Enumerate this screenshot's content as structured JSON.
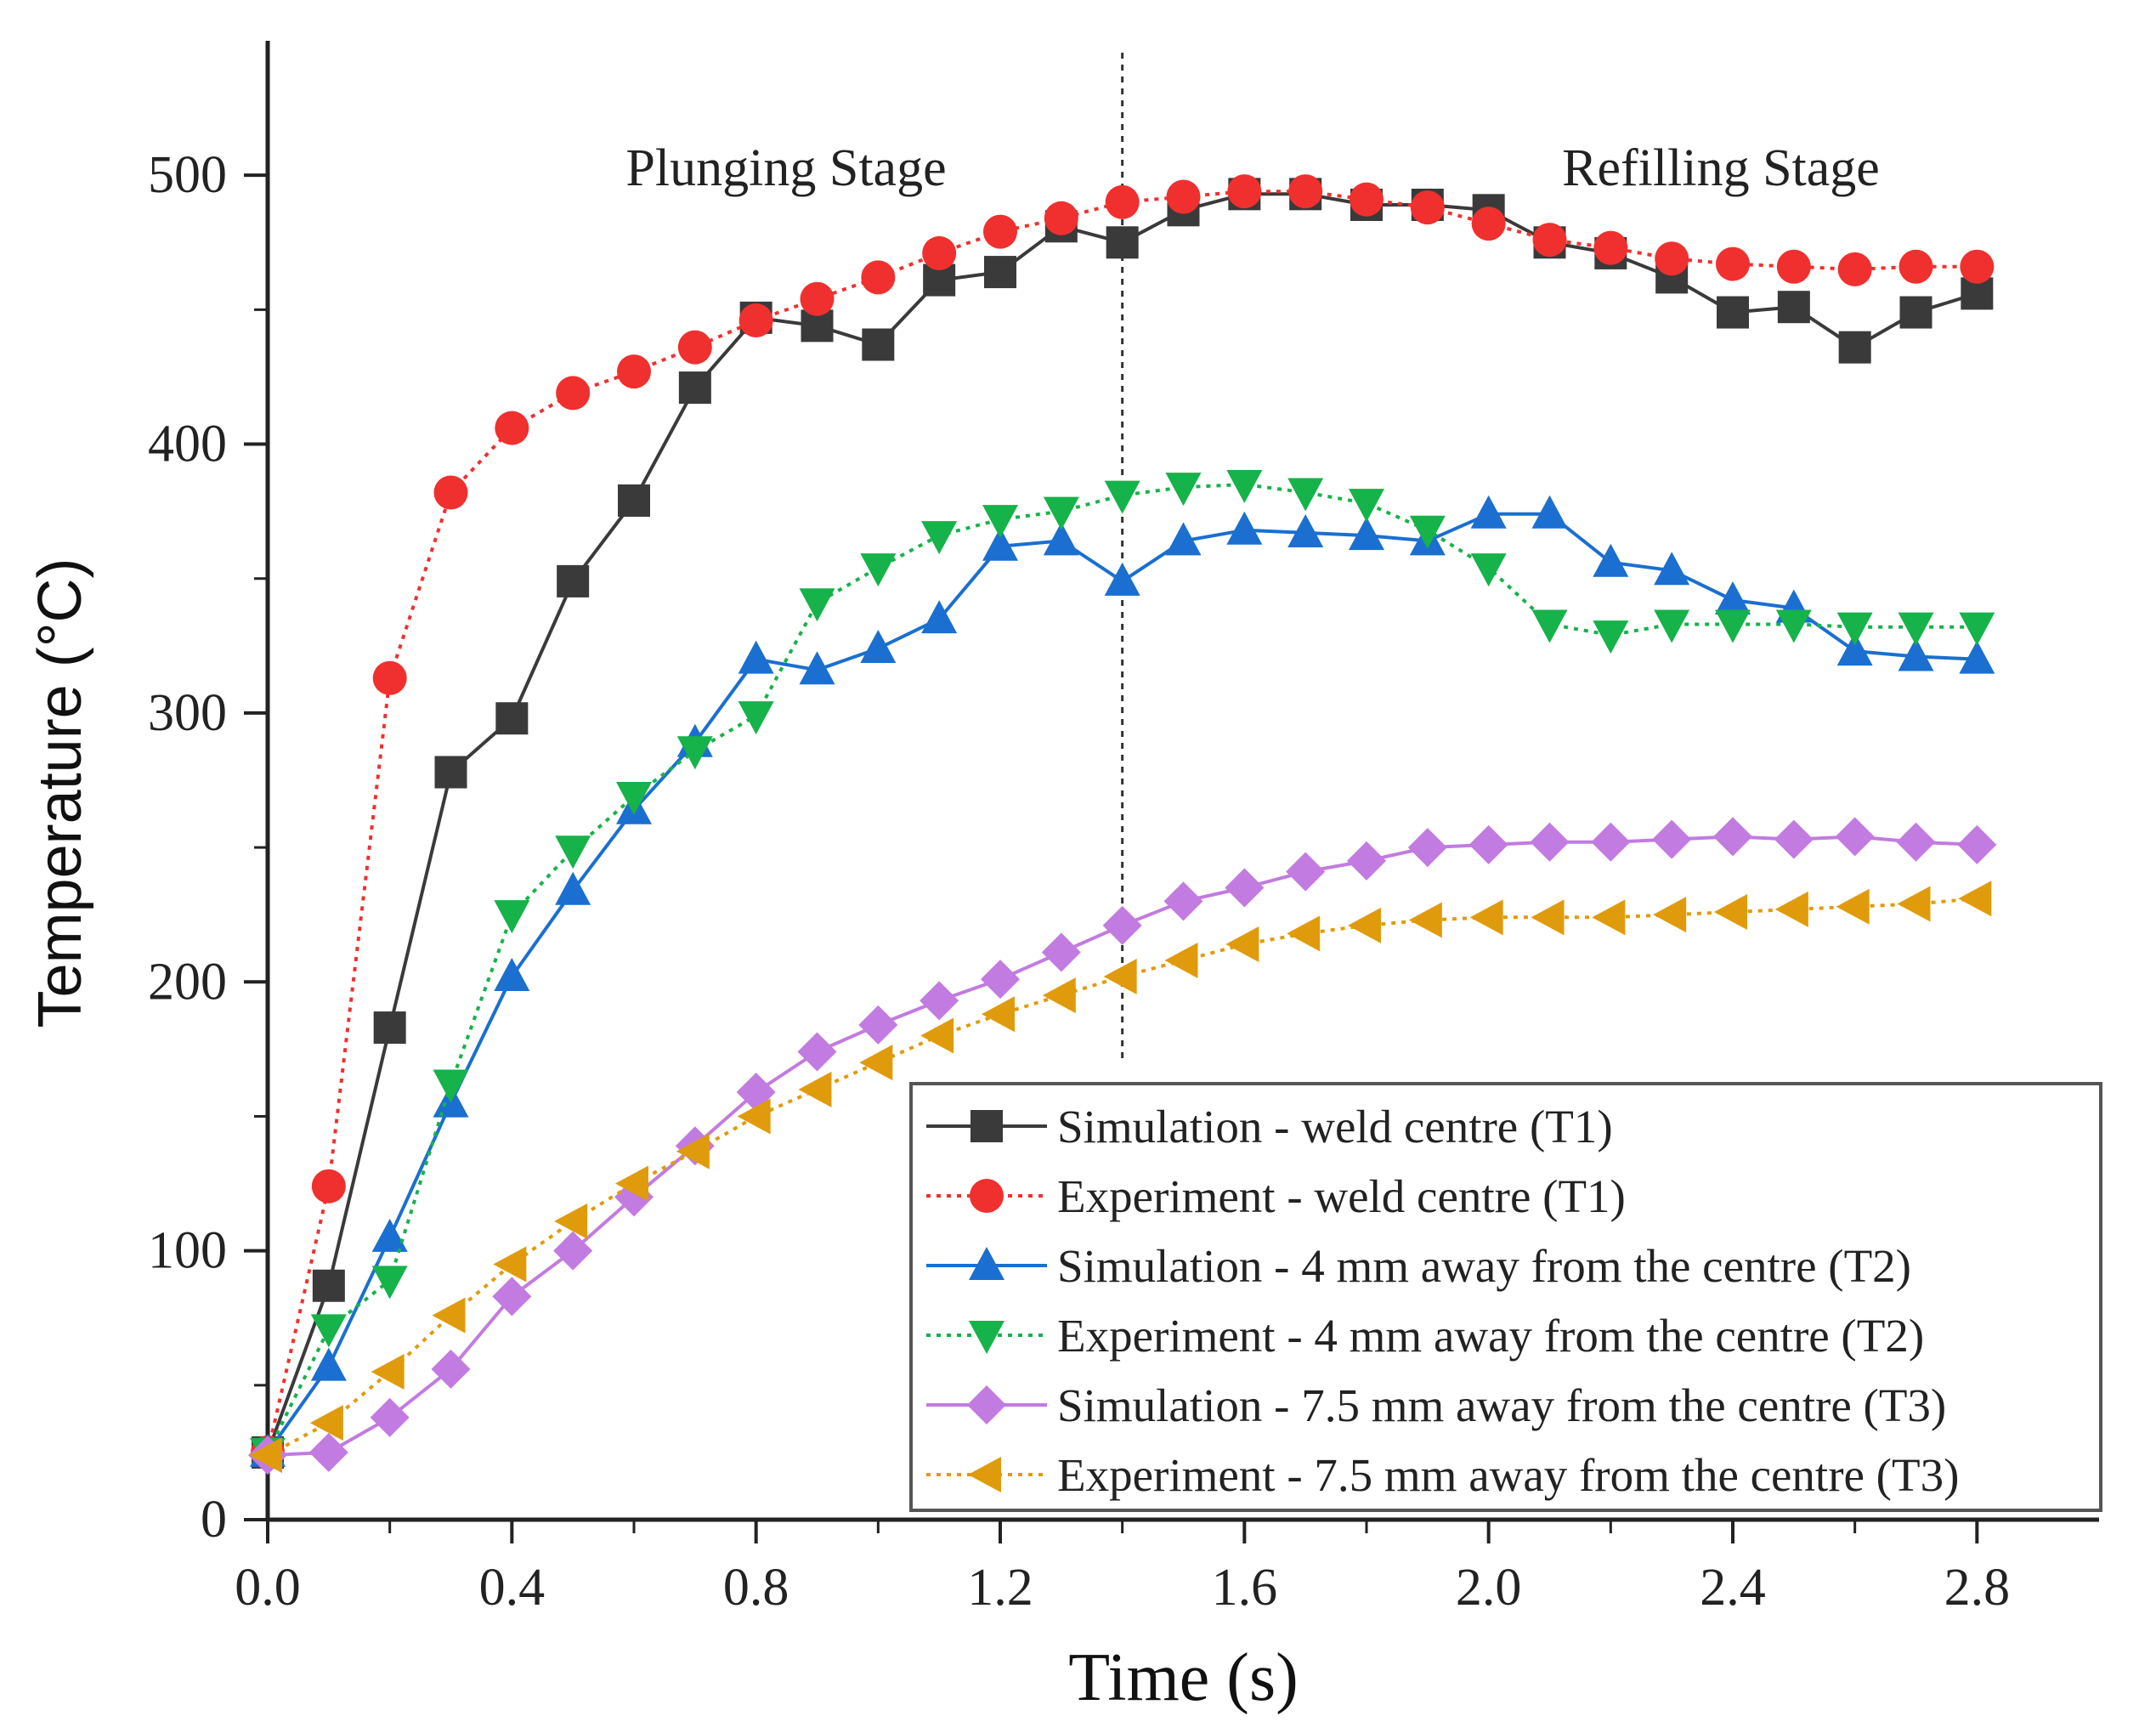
{
  "chart_data": {
    "type": "line",
    "xlabel": "Time (s)",
    "ylabel": "Temperature (°C)",
    "xlim": [
      0,
      3.0
    ],
    "ylim": [
      0,
      550
    ],
    "xticks": [
      0.0,
      0.4,
      0.8,
      1.2,
      1.6,
      2.0,
      2.4,
      2.8
    ],
    "xtick_labels": [
      "0.0",
      "0.4",
      "0.8",
      "1.2",
      "1.6",
      "2.0",
      "2.4",
      "2.8"
    ],
    "yticks": [
      0,
      100,
      200,
      300,
      400,
      500
    ],
    "ytick_labels": [
      "0",
      "100",
      "200",
      "300",
      "400",
      "500"
    ],
    "grid": false,
    "legend_position": "bottom-right",
    "annotations": [
      {
        "text": "Plunging Stage",
        "x": 0.85,
        "y": 500
      },
      {
        "text": "Refilling Stage",
        "x": 2.4,
        "y": 500
      }
    ],
    "vline": {
      "x": 1.4,
      "style": "dotted"
    },
    "x": [
      0.0,
      0.1,
      0.2,
      0.3,
      0.4,
      0.5,
      0.6,
      0.7,
      0.8,
      0.9,
      1.0,
      1.1,
      1.2,
      1.3,
      1.4,
      1.5,
      1.6,
      1.7,
      1.8,
      1.9,
      2.0,
      2.1,
      2.2,
      2.3,
      2.4,
      2.5,
      2.6,
      2.7,
      2.8
    ],
    "series": [
      {
        "name": "Simulation - weld centre (T1)",
        "color": "#3a3a3a",
        "line": "solid",
        "marker": "square",
        "values": [
          25,
          87,
          183,
          278,
          298,
          349,
          379,
          421,
          447,
          444,
          437,
          461,
          464,
          481,
          475,
          487,
          493,
          493,
          489,
          489,
          487,
          475,
          471,
          462,
          449,
          451,
          436,
          449,
          456
        ]
      },
      {
        "name": "Experiment - weld centre (T1)",
        "color": "#f0302e",
        "line": "dotted",
        "marker": "circle",
        "values": [
          25,
          124,
          313,
          382,
          406,
          419,
          427,
          436,
          446,
          454,
          462,
          471,
          479,
          484,
          490,
          492,
          494,
          494,
          491,
          488,
          482,
          476,
          473,
          469,
          467,
          466,
          465,
          466,
          466
        ]
      },
      {
        "name": "Simulation - 4 mm away from the centre (T2)",
        "color": "#1a6fd0",
        "line": "solid",
        "marker": "triangle-up",
        "values": [
          25,
          57,
          105,
          155,
          202,
          234,
          264,
          289,
          320,
          316,
          324,
          335,
          362,
          364,
          349,
          364,
          368,
          367,
          366,
          364,
          374,
          374,
          356,
          353,
          342,
          339,
          323,
          321,
          320
        ]
      },
      {
        "name": "Experiment - 4 mm away from the centre (T2)",
        "color": "#16b24a",
        "line": "dotted",
        "marker": "triangle-down",
        "values": [
          25,
          71,
          89,
          162,
          225,
          249,
          269,
          286,
          299,
          341,
          354,
          366,
          372,
          375,
          381,
          384,
          385,
          382,
          378,
          368,
          354,
          333,
          329,
          333,
          333,
          333,
          332,
          332,
          332
        ]
      },
      {
        "name": "Simulation - 7.5 mm away from the centre (T3)",
        "color": "#c27be0",
        "line": "solid",
        "marker": "diamond",
        "values": [
          24,
          25,
          38,
          56,
          83,
          100,
          120,
          139,
          159,
          174,
          184,
          193,
          201,
          211,
          221,
          230,
          235,
          241,
          245,
          250,
          251,
          252,
          252,
          253,
          254,
          253,
          254,
          252,
          251
        ]
      },
      {
        "name": "Experiment - 7.5 mm away from the centre (T3)",
        "color": "#e09b0c",
        "line": "dotted",
        "marker": "triangle-left",
        "values": [
          24,
          36,
          55,
          76,
          95,
          111,
          125,
          137,
          150,
          160,
          170,
          180,
          188,
          195,
          202,
          208,
          214,
          218,
          221,
          223,
          224,
          224,
          224,
          225,
          226,
          227,
          228,
          229,
          231
        ]
      }
    ]
  }
}
